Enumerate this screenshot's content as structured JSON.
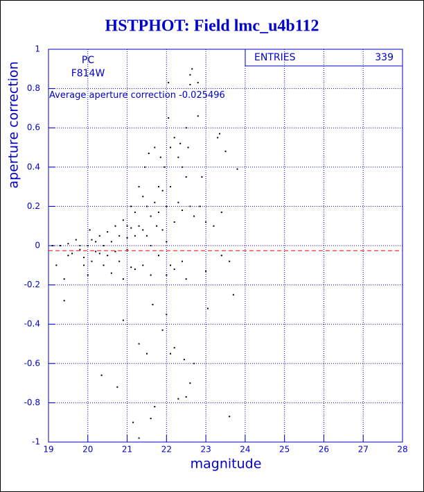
{
  "chart_data": {
    "type": "scatter",
    "title": "HSTPHOT: Field lmc_u4b112",
    "x_label": "magnitude",
    "y_label": "aperture correction",
    "annotations": [
      "PC",
      "F814W"
    ],
    "mean_label": "Average aperture correction",
    "mean": -0.025496,
    "mean_color": "#ff0000",
    "stats_label": "ENTRIES",
    "entries": 339,
    "color": "#000000",
    "axis_color": "#0000cc",
    "grid": true,
    "xlim": [
      19,
      28
    ],
    "ylim": [
      -1,
      1
    ],
    "xticks": [
      19,
      20,
      21,
      22,
      23,
      24,
      25,
      26,
      27,
      28
    ],
    "yticks": [
      -1,
      -0.8,
      -0.6,
      -0.4,
      -0.2,
      0,
      0.2,
      0.4,
      0.6,
      0.8,
      1
    ],
    "x": [
      19.1,
      19.2,
      19.3,
      19.4,
      19.4,
      19.5,
      19.5,
      19.6,
      19.7,
      19.8,
      19.8,
      19.9,
      19.9,
      20.0,
      20.0,
      20.05,
      20.1,
      20.1,
      20.2,
      20.2,
      20.3,
      20.3,
      20.35,
      20.4,
      20.4,
      20.5,
      20.5,
      20.6,
      20.6,
      20.7,
      20.7,
      20.75,
      20.8,
      20.8,
      20.9,
      20.9,
      20.9,
      21.0,
      21.0,
      21.0,
      21.1,
      21.1,
      21.1,
      21.15,
      21.2,
      21.2,
      21.2,
      21.3,
      21.3,
      21.3,
      21.3,
      21.4,
      21.4,
      21.4,
      21.45,
      21.5,
      21.5,
      21.5,
      21.55,
      21.6,
      21.6,
      21.6,
      21.6,
      21.65,
      21.7,
      21.7,
      21.7,
      21.75,
      21.8,
      21.8,
      21.8,
      21.85,
      21.9,
      21.9,
      21.9,
      21.95,
      22.0,
      22.0,
      22.0,
      22.0,
      22.05,
      22.05,
      22.1,
      22.1,
      22.1,
      22.1,
      22.2,
      22.2,
      22.2,
      22.2,
      22.3,
      22.3,
      22.3,
      22.35,
      22.4,
      22.4,
      22.4,
      22.45,
      22.5,
      22.5,
      22.5,
      22.5,
      22.55,
      22.6,
      22.6,
      22.6,
      22.6,
      22.65,
      22.7,
      22.7,
      22.8,
      22.8,
      22.85,
      22.9,
      23.0,
      23.0,
      23.05,
      23.2,
      23.3,
      23.35,
      23.4,
      23.4,
      23.5,
      23.6,
      23.6,
      23.7,
      23.8
    ],
    "y": [
      0.0,
      -0.1,
      0.0,
      -0.17,
      -0.28,
      0.01,
      -0.05,
      -0.04,
      0.03,
      -0.02,
      0.0,
      -0.06,
      -0.1,
      0.0,
      -0.15,
      0.08,
      0.03,
      -0.08,
      0.02,
      -0.03,
      0.05,
      -0.04,
      -0.66,
      0.0,
      -0.1,
      0.07,
      -0.05,
      0.02,
      -0.14,
      0.1,
      -0.03,
      -0.72,
      0.05,
      -0.08,
      0.13,
      -0.17,
      -0.38,
      0.1,
      0.04,
      -0.02,
      0.2,
      0.09,
      -0.11,
      -0.9,
      0.17,
      0.05,
      -0.12,
      0.3,
      0.1,
      -0.5,
      -0.98,
      0.25,
      0.08,
      -0.1,
      0.4,
      0.05,
      0.2,
      -0.55,
      0.47,
      0.15,
      0.0,
      -0.15,
      -0.88,
      -0.3,
      0.22,
      0.5,
      -0.82,
      0.1,
      0.3,
      0.17,
      -0.05,
      0.45,
      0.28,
      0.08,
      -0.43,
      0.4,
      0.2,
      0.02,
      -0.15,
      -0.35,
      0.65,
      0.83,
      0.5,
      0.3,
      -0.1,
      -0.55,
      0.55,
      0.12,
      -0.12,
      -0.52,
      0.45,
      0.22,
      -0.78,
      0.52,
      0.4,
      0.18,
      -0.08,
      -0.58,
      0.6,
      0.35,
      -0.17,
      -0.77,
      0.5,
      0.87,
      0.82,
      0.2,
      -0.7,
      0.9,
      0.15,
      -0.6,
      0.83,
      0.66,
      0.2,
      0.35,
      0.12,
      -0.13,
      -0.32,
      0.1,
      0.55,
      0.57,
      0.17,
      -0.05,
      0.48,
      -0.08,
      -0.87,
      -0.25,
      0.39
    ]
  }
}
